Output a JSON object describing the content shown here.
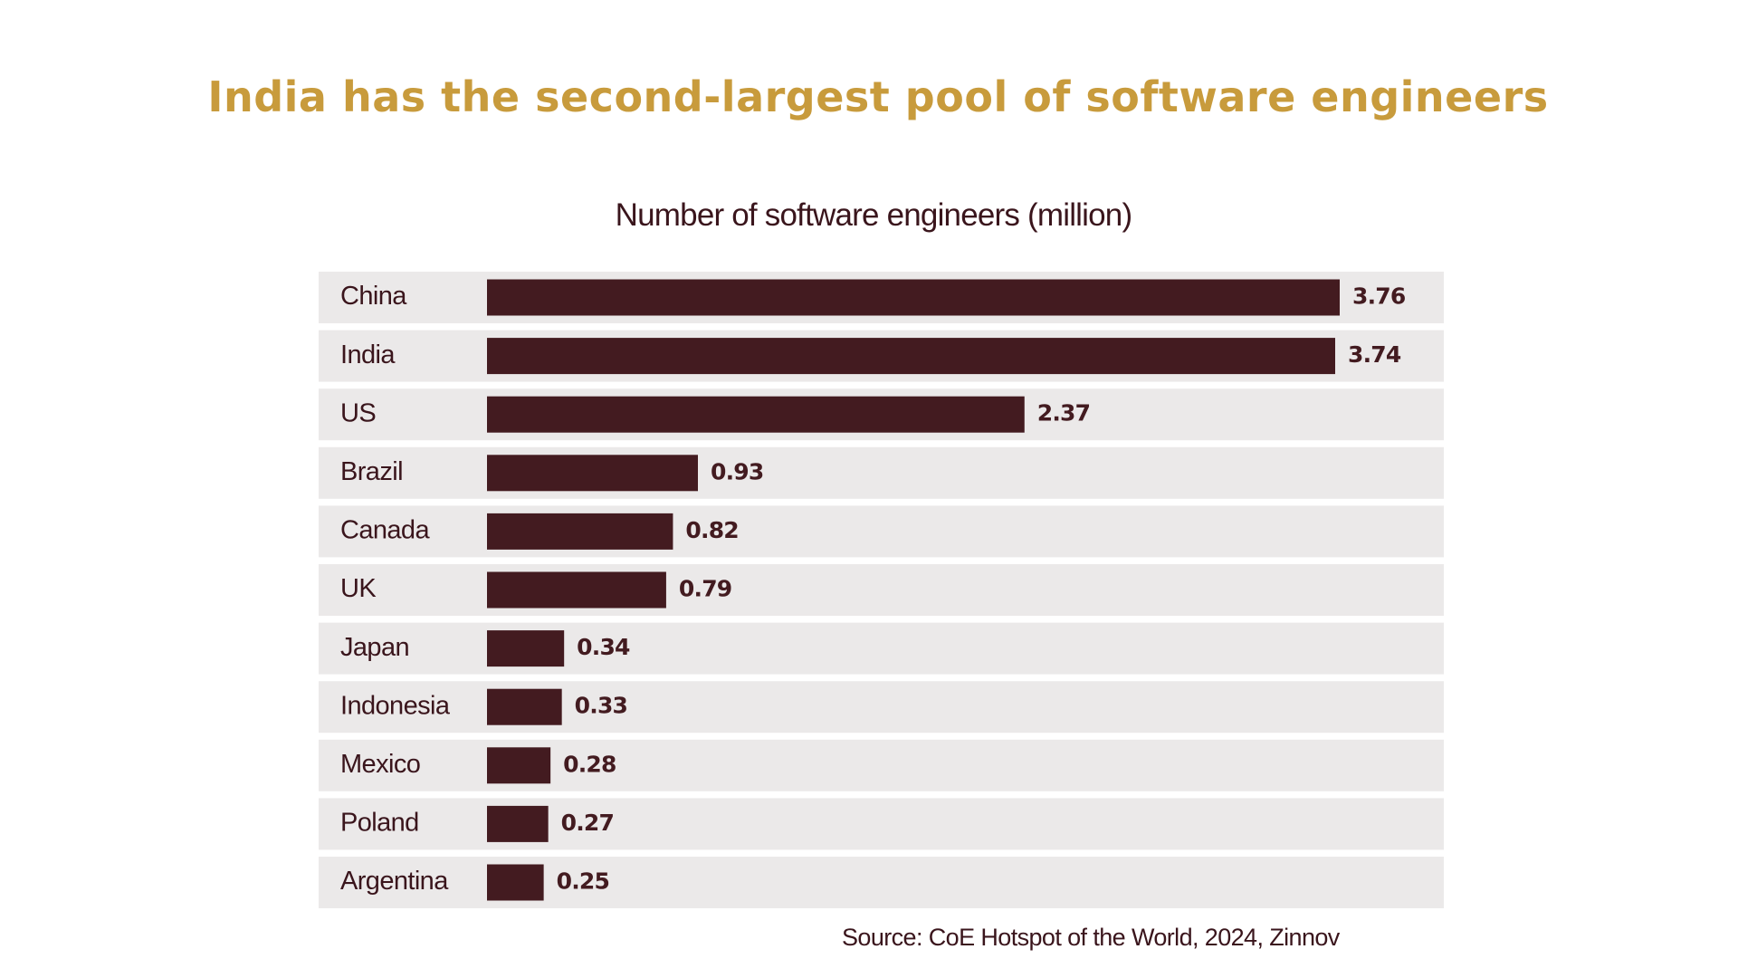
{
  "chart_data": {
    "type": "bar",
    "orientation": "horizontal",
    "title": "India has the second-largest pool of software engineers",
    "subtitle": "Number of software engineers (million)",
    "categories": [
      "China",
      "India",
      "US",
      "Brazil",
      "Canada",
      "UK",
      "Japan",
      "Indonesia",
      "Mexico",
      "Poland",
      "Argentina"
    ],
    "values": [
      3.76,
      3.74,
      2.37,
      0.93,
      0.82,
      0.79,
      0.34,
      0.33,
      0.28,
      0.27,
      0.25
    ],
    "value_labels": [
      "3.76",
      "3.74",
      "2.37",
      "0.93",
      "0.82",
      "0.79",
      "0.34",
      "0.33",
      "0.28",
      "0.27",
      "0.25"
    ],
    "xlim": [
      0,
      3.76
    ],
    "grid": false,
    "legend": "none",
    "colors": {
      "bar": "#431b20",
      "row_background": "#ebe9e9",
      "title": "#c89b3c",
      "text": "#3a151c"
    }
  },
  "footer": {
    "source": "Source: CoE Hotspot of the World, 2024, Zinnov"
  }
}
